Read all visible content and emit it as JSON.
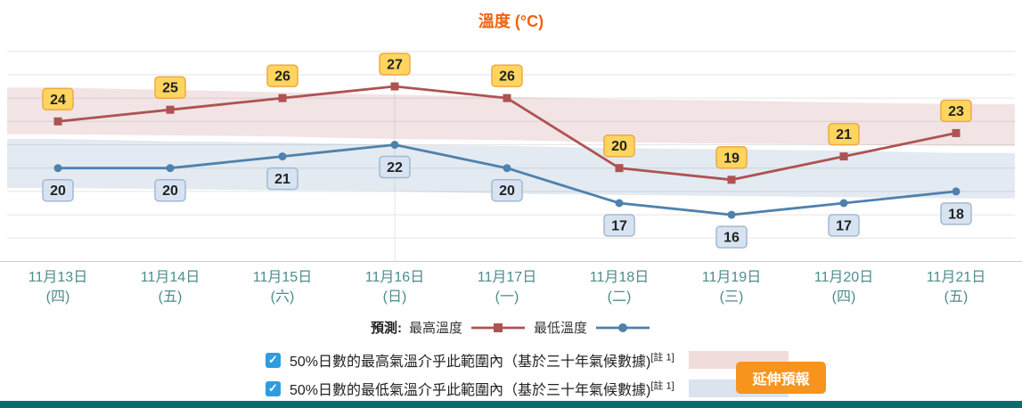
{
  "title": "溫度 (°C)",
  "colors": {
    "title": "#ee6214",
    "max_line": "#ae5252",
    "min_line": "#4f81ad",
    "max_band": "rgba(176,86,86,0.16)",
    "min_band": "rgba(102,141,180,0.18)",
    "max_label_bg": "#fdd55f",
    "max_label_border": "#efa845",
    "min_label_bg": "#d7e3f0",
    "min_label_border": "#a3b9d0",
    "axis_label": "#4e8c8c",
    "grid": "#e5e5e5",
    "axis_line": "#cccccc",
    "checkbox": "#2d9de0",
    "button_bg": "#f7941d",
    "bottom_bar": "#0f6b6b",
    "swatch_max": "#f1dcdc",
    "swatch_min": "#dbe3ed",
    "label_text": "#222222"
  },
  "chart_data": {
    "type": "line",
    "title": "溫度 (°C)",
    "ylim": [
      12,
      30
    ],
    "grid_step": 2,
    "grid": true,
    "legend_position": "bottom",
    "vertical_gridline_index": 3,
    "categories_date": [
      "11月13日",
      "11月14日",
      "11月15日",
      "11月16日",
      "11月17日",
      "11月18日",
      "11月19日",
      "11月20日",
      "11月21日"
    ],
    "categories_weekday": [
      "(四)",
      "(五)",
      "(六)",
      "(日)",
      "(一)",
      "(二)",
      "(三)",
      "(四)",
      "(五)"
    ],
    "series": [
      {
        "name": "最高溫度",
        "marker": "square",
        "label_position": "above",
        "values": [
          24,
          25,
          26,
          27,
          26,
          20,
          19,
          21,
          23
        ]
      },
      {
        "name": "最低溫度",
        "marker": "circle",
        "label_position": "below",
        "values": [
          20,
          20,
          21,
          22,
          20,
          17,
          16,
          17,
          18
        ]
      }
    ],
    "bands": [
      {
        "name": "max-climate-range",
        "upper": [
          26.9,
          26.7,
          26.5,
          26.3,
          26.1,
          25.9,
          25.8,
          25.6,
          25.5
        ],
        "lower": [
          22.9,
          22.8,
          22.7,
          22.5,
          22.4,
          22.2,
          22.1,
          22.0,
          21.9
        ]
      },
      {
        "name": "min-climate-range",
        "upper": [
          22.5,
          22.3,
          22.2,
          22.0,
          21.9,
          21.7,
          21.6,
          21.5,
          21.3
        ],
        "lower": [
          18.3,
          18.2,
          18.1,
          18.0,
          17.8,
          17.7,
          17.6,
          17.5,
          17.4
        ]
      }
    ]
  },
  "legend": {
    "prefix": "預測:",
    "max_label": "最高溫度",
    "min_label": "最低溫度"
  },
  "controls": {
    "max_range": {
      "checked": true,
      "check_glyph": "✓",
      "label": "50%日數的最高氣溫介乎此範圍內（基於三十年氣候數據)",
      "superscript": "[註 1]"
    },
    "min_range": {
      "checked": true,
      "check_glyph": "✓",
      "label": "50%日數的最低氣溫介乎此範圍內（基於三十年氣候數據)",
      "superscript": "[註 1]"
    },
    "extend_button": "延伸預報"
  }
}
